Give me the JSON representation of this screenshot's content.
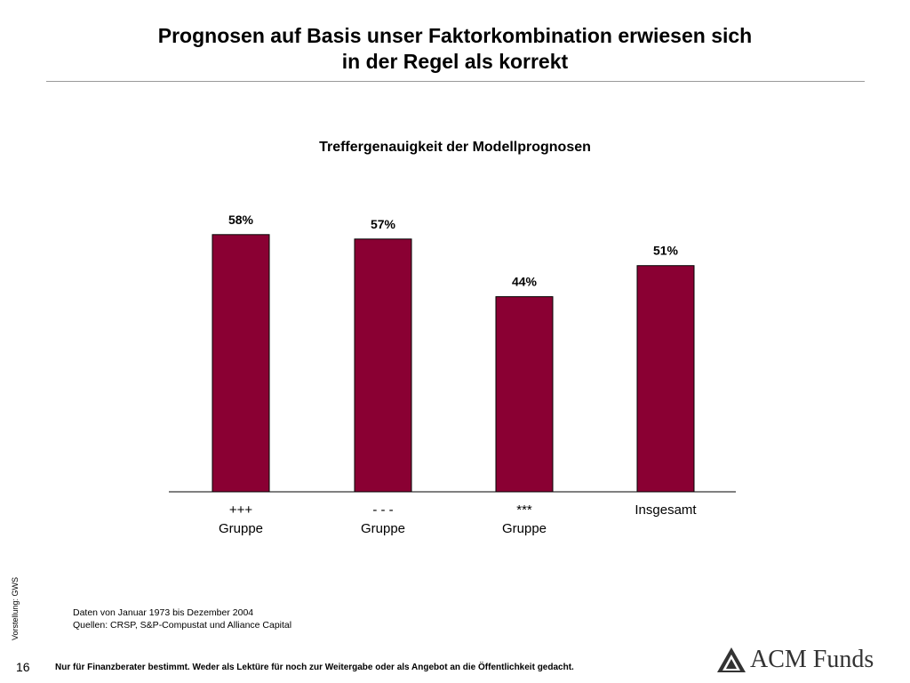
{
  "slide": {
    "title_line1": "Prognosen auf Basis unser Faktorkombination erwiesen sich",
    "title_line2": "in der Regel als korrekt",
    "side_note": "Vorstellung: GWS",
    "footnote_line1": "Daten von Januar 1973 bis Dezember 2004",
    "footnote_line2": "Quellen: CRSP, S&P-Compustat und Alliance Capital",
    "page_number": "16",
    "disclaimer": "Nur für Finanzberater bestimmt. Weder als Lektüre für noch zur Weitergabe oder als Angebot an die Öffentlichkeit gedacht.",
    "logo_text": "ACM Funds",
    "logo_icon": "acm-triangle-logo-icon"
  },
  "chart_data": {
    "type": "bar",
    "title": "Treffergenauigkeit der Modellprognosen",
    "categories": [
      [
        "+++",
        "Gruppe"
      ],
      [
        "- - -",
        "Gruppe"
      ],
      [
        "***",
        "Gruppe"
      ],
      [
        "Insgesamt"
      ]
    ],
    "values": [
      58,
      57,
      44,
      51
    ],
    "data_labels": [
      "58%",
      "57%",
      "44%",
      "51%"
    ],
    "ylim": [
      0,
      72
    ],
    "grid": false,
    "bar_color": "#8a0033",
    "xlabel": "",
    "ylabel": ""
  }
}
